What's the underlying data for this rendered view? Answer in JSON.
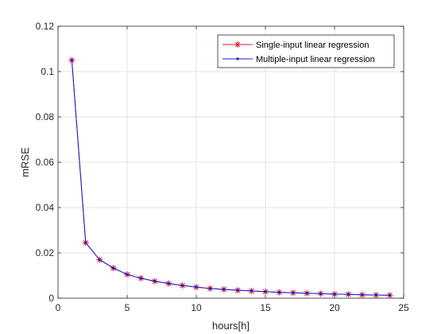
{
  "chart_data": {
    "type": "line",
    "title": "",
    "xlabel": "hours[h]",
    "ylabel": "mRSE",
    "xlim": [
      0,
      25
    ],
    "ylim": [
      0,
      0.12
    ],
    "xticks": [
      0,
      5,
      10,
      15,
      20,
      25
    ],
    "yticks": [
      0,
      0.02,
      0.04,
      0.06,
      0.08,
      0.1,
      0.12
    ],
    "xtick_labels": [
      "0",
      "5",
      "10",
      "15",
      "20",
      "25"
    ],
    "ytick_labels": [
      "0",
      "0.02",
      "0.04",
      "0.06",
      "0.08",
      "0.1",
      "0.12"
    ],
    "grid": true,
    "legend_position": "top-right",
    "x": [
      1,
      2,
      3,
      4,
      5,
      6,
      7,
      8,
      9,
      10,
      11,
      12,
      13,
      14,
      15,
      16,
      17,
      18,
      19,
      20,
      21,
      22,
      23,
      24
    ],
    "series": [
      {
        "name": "Single-input linear regression",
        "line_color": "#e0112b",
        "marker_color": "#e0112b",
        "marker": "asterisk",
        "values": [
          0.105,
          0.0245,
          0.017,
          0.0133,
          0.0105,
          0.0088,
          0.0075,
          0.0065,
          0.0056,
          0.0049,
          0.0043,
          0.0039,
          0.0035,
          0.0032,
          0.0029,
          0.0026,
          0.0024,
          0.0022,
          0.002,
          0.0018,
          0.0017,
          0.0015,
          0.0014,
          0.0013
        ]
      },
      {
        "name": "Multiple-input linear regression",
        "line_color": "#1a1ac8",
        "marker_color": "#1a1ac8",
        "marker": "dot",
        "values": [
          0.105,
          0.0245,
          0.017,
          0.0133,
          0.0105,
          0.0088,
          0.0075,
          0.0065,
          0.0056,
          0.0049,
          0.0043,
          0.0039,
          0.0035,
          0.0032,
          0.0029,
          0.0026,
          0.0024,
          0.0022,
          0.002,
          0.0018,
          0.0017,
          0.0015,
          0.0014,
          0.0013
        ]
      }
    ]
  }
}
